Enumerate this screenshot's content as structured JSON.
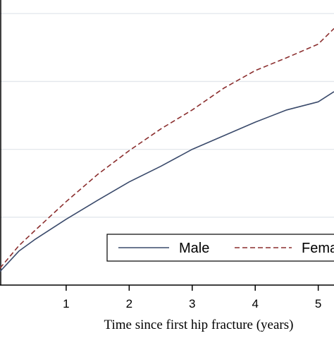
{
  "chart_data": {
    "type": "line",
    "title": "",
    "xlabel": "Time since first hip fracture (years)",
    "ylabel": "",
    "xlim": [
      -0.05,
      5.25
    ],
    "ylim": [
      0,
      0.42
    ],
    "grid": true,
    "legend_placement": "bottom-right",
    "x_ticks": [
      1,
      2,
      3,
      4,
      5
    ],
    "x_tick_labels": [
      "1",
      "2",
      "3",
      "4",
      "5"
    ],
    "y_gridlines": [
      0.1,
      0.2,
      0.3,
      0.4
    ],
    "series": [
      {
        "name": "Male",
        "color": "#3a4a6b",
        "dash": "solid",
        "x": [
          -0.05,
          0.25,
          0.5,
          1.0,
          1.5,
          2.0,
          2.5,
          3.0,
          3.5,
          4.0,
          4.5,
          5.0,
          5.25
        ],
        "y": [
          0.02,
          0.05,
          0.067,
          0.097,
          0.125,
          0.152,
          0.175,
          0.2,
          0.22,
          0.24,
          0.258,
          0.27,
          0.285
        ]
      },
      {
        "name": "Female",
        "color": "#8b2e2e",
        "dash": "dashed",
        "x": [
          -0.05,
          0.25,
          0.5,
          1.0,
          1.5,
          2.0,
          2.5,
          3.0,
          3.5,
          4.0,
          4.5,
          5.0,
          5.25
        ],
        "y": [
          0.025,
          0.058,
          0.08,
          0.123,
          0.163,
          0.198,
          0.23,
          0.258,
          0.29,
          0.316,
          0.335,
          0.355,
          0.378
        ]
      }
    ]
  }
}
